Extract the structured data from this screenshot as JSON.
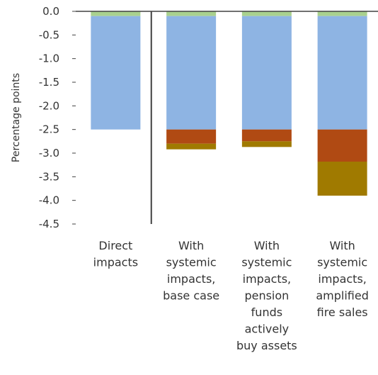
{
  "chart_data": {
    "type": "bar",
    "stacked": true,
    "ylabel": "Percentage points",
    "ylim": [
      -4.5,
      0.0
    ],
    "yticks": [
      "0.0",
      "-0.5",
      "-1.0",
      "-1.5",
      "-2.0",
      "-2.5",
      "-3.0",
      "-3.5",
      "-4.0",
      "-4.5"
    ],
    "categories": [
      [
        "Direct",
        "impacts"
      ],
      [
        "With",
        "systemic",
        "impacts,",
        "base case"
      ],
      [
        "With",
        "systemic",
        "impacts,",
        "pension",
        "funds",
        "actively",
        "buy assets"
      ],
      [
        "With",
        "systemic",
        "impacts,",
        "amplified",
        "fire sales"
      ]
    ],
    "series": [
      {
        "color": "#a9d18e",
        "values": [
          -0.1,
          -0.1,
          -0.1,
          -0.1
        ]
      },
      {
        "color": "#8eb4e3",
        "values": [
          -2.4,
          -2.4,
          -2.4,
          -2.4
        ]
      },
      {
        "color": "#b04a13",
        "values": [
          0,
          -0.3,
          -0.25,
          -0.68
        ]
      },
      {
        "color": "#a07a00",
        "values": [
          0,
          -0.12,
          -0.12,
          -0.72
        ]
      }
    ],
    "divider_after_category": 0,
    "legend": "none",
    "grid": false
  }
}
